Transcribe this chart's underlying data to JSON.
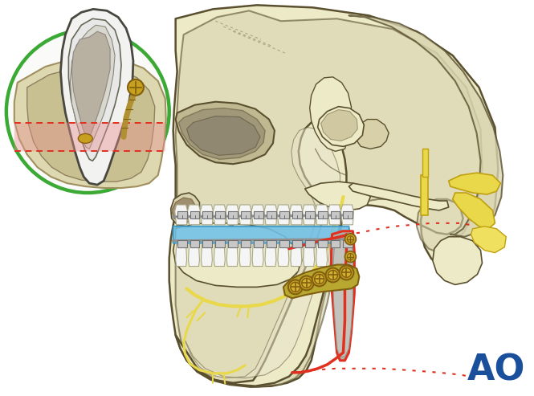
{
  "background_color": "#ffffff",
  "ao_logo_text": "AO",
  "ao_logo_color": "#1a4f9c",
  "ao_logo_fontsize": 32,
  "figsize": [
    6.65,
    4.93
  ],
  "dpi": 100,
  "bone_color": "#edeac8",
  "bone_outline": "#5a5030",
  "bone_shadow": "#d8d4b0",
  "circle_color": "#3aaa35",
  "circle_linewidth": 3.0,
  "red_line_color": "#e03020",
  "blue_occlusal_color": "#70c0e8",
  "yellow_nerve_color": "#e8d84a",
  "yellow_light": "#f0e878",
  "screw_color": "#c8a020",
  "screw_dark": "#806010",
  "pink_area_color": "#e89090",
  "gray_ramus_color": "#b0b0a8",
  "gray_ramus_dark": "#909088",
  "plate_bg": "#c8b840",
  "white_tooth": "#f5f5f5",
  "tooth_outline": "#888870",
  "bracket_color": "#c8c8c8",
  "bracket_dark": "#707070",
  "wire_color": "#909090",
  "inner_bone_inset": "#c8c090",
  "inset_bone_fill": "#ddd8b0",
  "pulp_color": "#e0c898",
  "canal_color": "#d0b880",
  "skull_inner": "#d8d4b0",
  "temporal_yellow": "#e8d84a",
  "nerve_branch": "#d8c840"
}
